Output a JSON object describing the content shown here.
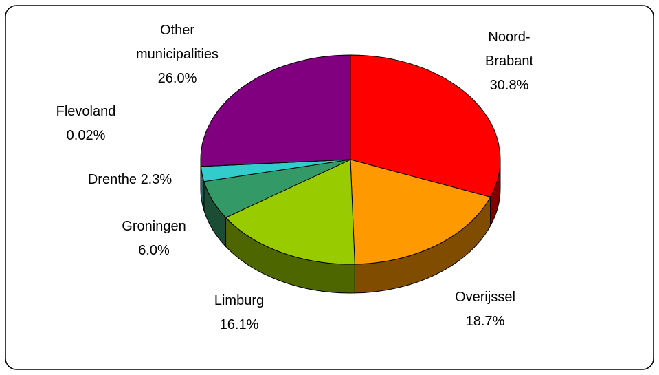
{
  "chart_data": {
    "type": "pie",
    "categories": [
      "Noord-Brabant",
      "Overijssel",
      "Limburg",
      "Groningen",
      "Drenthe",
      "Flevoland",
      "Other municipalities"
    ],
    "values": [
      30.8,
      18.7,
      16.1,
      6.0,
      2.3,
      0.02,
      26.0
    ],
    "value_labels": [
      "30.8%",
      "18.7%",
      "16.1%",
      "6.0%",
      "2.3%",
      "0.02%",
      "26.0%"
    ],
    "colors": [
      "#ff0000",
      "#ff9900",
      "#99cc00",
      "#339966",
      "#33cccc",
      "#3366ff",
      "#800080"
    ]
  }
}
